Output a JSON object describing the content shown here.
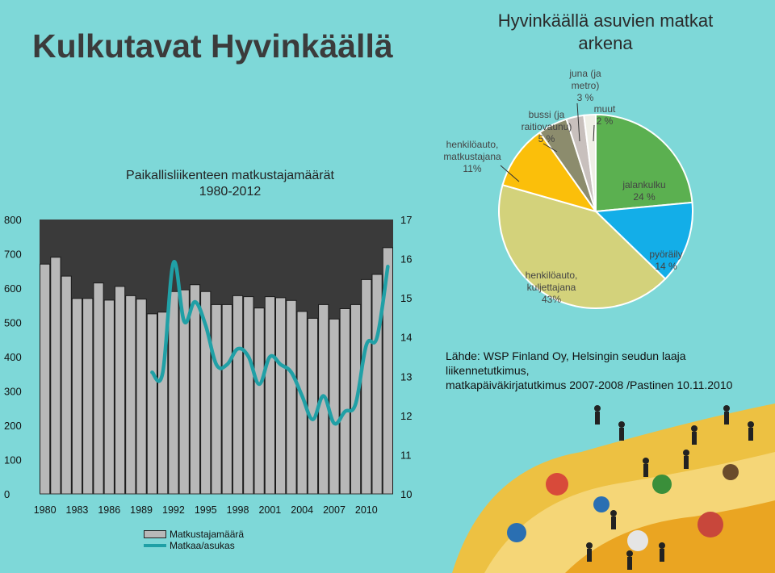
{
  "header": {
    "title": "Kulkutavat Hyvinkäällä"
  },
  "chart_data": [
    {
      "type": "bar",
      "title": "Paikallisliikenteen matkustajamäärät\n1980-2012",
      "years": [
        1980,
        1981,
        1982,
        1983,
        1984,
        1985,
        1986,
        1987,
        1988,
        1989,
        1990,
        1991,
        1992,
        1993,
        1994,
        1995,
        1996,
        1997,
        1998,
        1999,
        2000,
        2001,
        2002,
        2003,
        2004,
        2005,
        2006,
        2007,
        2008,
        2009,
        2010,
        2011,
        2012
      ],
      "x_tick_labels": [
        "1980",
        "1983",
        "1986",
        "1989",
        "1992",
        "1995",
        "1998",
        "2001",
        "2004",
        "2007",
        "2010"
      ],
      "y_left_ticks": [
        "0",
        "100",
        "200",
        "300",
        "400",
        "500",
        "600",
        "700",
        "800"
      ],
      "y_right_ticks": [
        "10",
        "11",
        "12",
        "13",
        "14",
        "15",
        "16",
        "17"
      ],
      "ylim_left": [
        0,
        800
      ],
      "ylim_right": [
        10,
        17
      ],
      "series": [
        {
          "name": "Matkustajamäärä",
          "axis": "left",
          "kind": "bar",
          "color": "#b8b8b8",
          "values": [
            670,
            690,
            635,
            570,
            570,
            615,
            565,
            605,
            578,
            568,
            525,
            530,
            590,
            595,
            610,
            590,
            552,
            552,
            578,
            575,
            542,
            575,
            572,
            564,
            532,
            512,
            552,
            510,
            540,
            552,
            625,
            640,
            718
          ]
        },
        {
          "name": "Matkaa/asukas",
          "axis": "right",
          "kind": "line",
          "color": "#20a0a6",
          "x": [
            1990,
            1991,
            1992,
            1993,
            1994,
            1995,
            1996,
            1997,
            1998,
            1999,
            2000,
            2001,
            2002,
            2003,
            2004,
            2005,
            2006,
            2007,
            2008,
            2009,
            2010,
            2011,
            2012
          ],
          "values": [
            13.1,
            13.1,
            15.9,
            14.4,
            14.9,
            14.3,
            13.3,
            13.3,
            13.7,
            13.5,
            12.8,
            13.5,
            13.3,
            13.1,
            12.5,
            11.9,
            12.5,
            11.8,
            12.1,
            12.3,
            13.8,
            14.0,
            15.8
          ]
        }
      ],
      "legend": [
        "Matkustajamäärä",
        "Matkaa/asukas"
      ],
      "legend_position": "bottom",
      "background": "#3a3a3a"
    },
    {
      "type": "pie",
      "title": "Hyvinkäällä asuvien matkat arkena",
      "slices": [
        {
          "label": "jalankulku",
          "value_label": "24 %",
          "value": 24,
          "color": "#5bb050"
        },
        {
          "label": "pyöräily",
          "value_label": "14 %",
          "value": 14,
          "color": "#13aee8"
        },
        {
          "label": "henkilöauto,\nkuljettajana",
          "value_label": "43%",
          "value": 43,
          "color": "#d3d27b"
        },
        {
          "label": "henkilöauto,\nmatkustajana",
          "value_label": "11%",
          "value": 11,
          "color": "#fbbf0a"
        },
        {
          "label": "bussi (ja\nraitiovaunu)",
          "value_label": "5 %",
          "value": 5,
          "color": "#8c8c6d"
        },
        {
          "label": "juna (ja\nmetro)",
          "value_label": "3 %",
          "value": 3,
          "color": "#c8c0bd"
        },
        {
          "label": "muut",
          "value_label": "2 %",
          "value": 2,
          "color": "#efefe6"
        }
      ]
    }
  ],
  "source": {
    "text_line1": "Lähde: WSP Finland Oy, Helsingin seudun laaja liikennetutkimus,",
    "text_line2": "matkapäiväkirjatutkimus 2007-2008 /Pastinen 10.11.2010"
  }
}
